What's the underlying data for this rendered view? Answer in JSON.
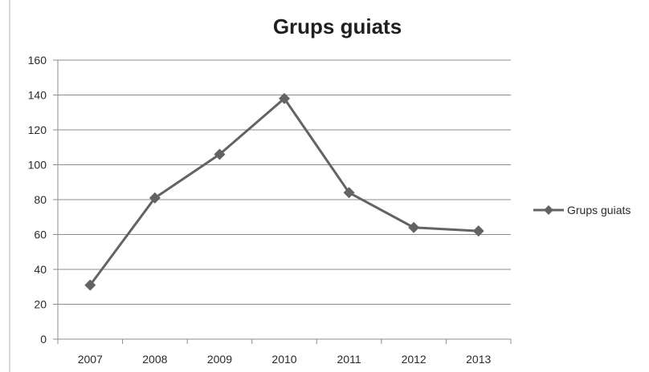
{
  "chart_data": {
    "type": "line",
    "title": "Grups guiats",
    "xlabel": "",
    "ylabel": "",
    "categories": [
      "2007",
      "2008",
      "2009",
      "2010",
      "2011",
      "2012",
      "2013"
    ],
    "series": [
      {
        "name": "Grups guiats",
        "values": [
          31,
          81,
          106,
          138,
          84,
          64,
          62
        ],
        "color": "#636363"
      }
    ],
    "ylim": [
      0,
      160
    ],
    "y_ticks": [
      "0",
      "20",
      "40",
      "60",
      "80",
      "100",
      "120",
      "140",
      "160"
    ],
    "grid": true,
    "legend_position": "right"
  }
}
